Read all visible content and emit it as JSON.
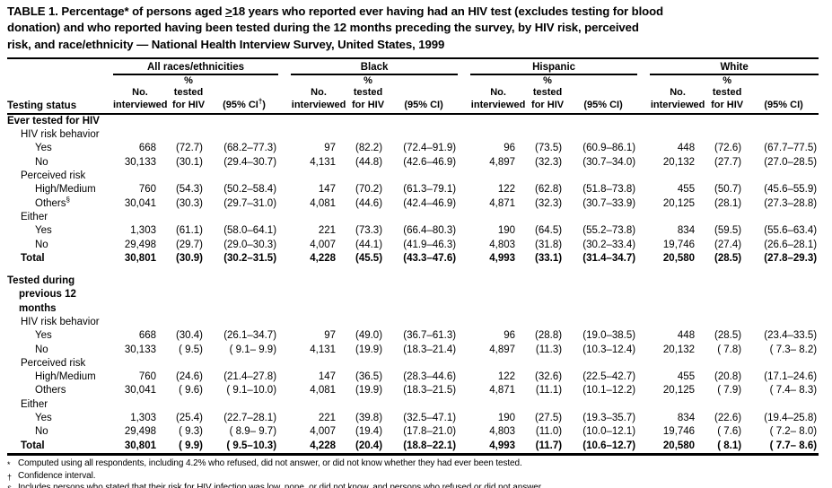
{
  "title": {
    "line1_pre": "TABLE 1. Percentage* of persons aged ",
    "line1_geq": ">",
    "line1_post": "18 years who reported ever having had an HIV test (excludes testing for blood",
    "line2": "donation) and who reported having been tested during the 12 months preceding the survey, by HIV risk, perceived",
    "line3": "risk, and race/ethnicity — National Health Interview Survey, United States, 1999"
  },
  "header": {
    "testing_status": "Testing status",
    "sub": {
      "no": "No.",
      "interviewed": "interviewed",
      "pct_sign": "%",
      "tested": "tested",
      "for_hiv": "for HIV"
    },
    "groups": [
      {
        "name": "All races/ethnicities",
        "ci_pre": "(95% CI",
        "ci_sup": "†",
        "ci_post": ")"
      },
      {
        "name": "Black",
        "ci_pre": "(95% CI)",
        "ci_sup": "",
        "ci_post": ""
      },
      {
        "name": "Hispanic",
        "ci_pre": "(95% CI)",
        "ci_sup": "",
        "ci_post": ""
      },
      {
        "name": "White",
        "ci_pre": "(95% CI)",
        "ci_sup": "",
        "ci_post": ""
      }
    ]
  },
  "rows": [
    {
      "label": "Ever tested for HIV",
      "indent": 0,
      "bold": true,
      "cells": []
    },
    {
      "label": "HIV risk behavior",
      "indent": 1,
      "bold": false,
      "cells": []
    },
    {
      "label": "Yes",
      "indent": 2,
      "bold": false,
      "cells": [
        "668",
        "(72.7)",
        "(68.2–77.3)",
        "97",
        "(82.2)",
        "(72.4–91.9)",
        "96",
        "(73.5)",
        "(60.9–86.1)",
        "448",
        "(72.6)",
        "(67.7–77.5)"
      ]
    },
    {
      "label": "No",
      "indent": 2,
      "bold": false,
      "cells": [
        "30,133",
        "(30.1)",
        "(29.4–30.7)",
        "4,131",
        "(44.8)",
        "(42.6–46.9)",
        "4,897",
        "(32.3)",
        "(30.7–34.0)",
        "20,132",
        "(27.7)",
        "(27.0–28.5)"
      ]
    },
    {
      "label": "Perceived risk",
      "indent": 1,
      "bold": false,
      "cells": []
    },
    {
      "label": "High/Medium",
      "indent": 2,
      "bold": false,
      "cells": [
        "760",
        "(54.3)",
        "(50.2–58.4)",
        "147",
        "(70.2)",
        "(61.3–79.1)",
        "122",
        "(62.8)",
        "(51.8–73.8)",
        "455",
        "(50.7)",
        "(45.6–55.9)"
      ]
    },
    {
      "label": "Others",
      "sup": "§",
      "indent": 2,
      "bold": false,
      "cells": [
        "30,041",
        "(30.3)",
        "(29.7–31.0)",
        "4,081",
        "(44.6)",
        "(42.4–46.9)",
        "4,871",
        "(32.3)",
        "(30.7–33.9)",
        "20,125",
        "(28.1)",
        "(27.3–28.8)"
      ]
    },
    {
      "label": "Either",
      "indent": 1,
      "bold": false,
      "cells": []
    },
    {
      "label": "Yes",
      "indent": 2,
      "bold": false,
      "cells": [
        "1,303",
        "(61.1)",
        "(58.0–64.1)",
        "221",
        "(73.3)",
        "(66.4–80.3)",
        "190",
        "(64.5)",
        "(55.2–73.8)",
        "834",
        "(59.5)",
        "(55.6–63.4)"
      ]
    },
    {
      "label": "No",
      "indent": 2,
      "bold": false,
      "cells": [
        "29,498",
        "(29.7)",
        "(29.0–30.3)",
        "4,007",
        "(44.1)",
        "(41.9–46.3)",
        "4,803",
        "(31.8)",
        "(30.2–33.4)",
        "19,746",
        "(27.4)",
        "(26.6–28.1)"
      ]
    },
    {
      "label": "Total",
      "indent": 1,
      "bold": true,
      "cells": [
        "30,801",
        "(30.9)",
        "(30.2–31.5)",
        "4,228",
        "(45.5)",
        "(43.3–47.6)",
        "4,993",
        "(33.1)",
        "(31.4–34.7)",
        "20,580",
        "(28.5)",
        "(27.8–29.3)"
      ]
    },
    {
      "label": "Tested during",
      "label2": "previous 12 months",
      "indent": 0,
      "bold": true,
      "gap": true,
      "cells": []
    },
    {
      "label": "HIV risk behavior",
      "indent": 1,
      "bold": false,
      "cells": []
    },
    {
      "label": "Yes",
      "indent": 2,
      "bold": false,
      "cells": [
        "668",
        "(30.4)",
        "(26.1–34.7)",
        "97",
        "(49.0)",
        "(36.7–61.3)",
        "96",
        "(28.8)",
        "(19.0–38.5)",
        "448",
        "(28.5)",
        "(23.4–33.5)"
      ]
    },
    {
      "label": "No",
      "indent": 2,
      "bold": false,
      "cells": [
        "30,133",
        "( 9.5)",
        "( 9.1– 9.9)",
        "4,131",
        "(19.9)",
        "(18.3–21.4)",
        "4,897",
        "(11.3)",
        "(10.3–12.4)",
        "20,132",
        "( 7.8)",
        "( 7.3– 8.2)"
      ]
    },
    {
      "label": "Perceived risk",
      "indent": 1,
      "bold": false,
      "cells": []
    },
    {
      "label": "High/Medium",
      "indent": 2,
      "bold": false,
      "cells": [
        "760",
        "(24.6)",
        "(21.4–27.8)",
        "147",
        "(36.5)",
        "(28.3–44.6)",
        "122",
        "(32.6)",
        "(22.5–42.7)",
        "455",
        "(20.8)",
        "(17.1–24.6)"
      ]
    },
    {
      "label": "Others",
      "indent": 2,
      "bold": false,
      "cells": [
        "30,041",
        "( 9.6)",
        "( 9.1–10.0)",
        "4,081",
        "(19.9)",
        "(18.3–21.5)",
        "4,871",
        "(11.1)",
        "(10.1–12.2)",
        "20,125",
        "( 7.9)",
        "( 7.4– 8.3)"
      ]
    },
    {
      "label": "Either",
      "indent": 1,
      "bold": false,
      "cells": []
    },
    {
      "label": "Yes",
      "indent": 2,
      "bold": false,
      "cells": [
        "1,303",
        "(25.4)",
        "(22.7–28.1)",
        "221",
        "(39.8)",
        "(32.5–47.1)",
        "190",
        "(27.5)",
        "(19.3–35.7)",
        "834",
        "(22.6)",
        "(19.4–25.8)"
      ]
    },
    {
      "label": "No",
      "indent": 2,
      "bold": false,
      "cells": [
        "29,498",
        "( 9.3)",
        "( 8.9– 9.7)",
        "4,007",
        "(19.4)",
        "(17.8–21.0)",
        "4,803",
        "(11.0)",
        "(10.0–12.1)",
        "19,746",
        "( 7.6)",
        "( 7.2– 8.0)"
      ]
    },
    {
      "label": "Total",
      "indent": 1,
      "bold": true,
      "cells": [
        "30,801",
        "( 9.9)",
        "( 9.5–10.3)",
        "4,228",
        "(20.4)",
        "(18.8–22.1)",
        "4,993",
        "(11.7)",
        "(10.6–12.7)",
        "20,580",
        "( 8.1)",
        "( 7.7– 8.6)"
      ]
    }
  ],
  "footnotes": [
    {
      "symbol": "*",
      "text": "Computed using all respondents, including 4.2% who refused, did not answer, or did not know whether they had ever been tested."
    },
    {
      "symbol": "†",
      "text": "Confidence interval."
    },
    {
      "symbol": "§",
      "text": "Includes persons who stated that their risk for HIV infection was low, none, or did not know, and persons who refused or did not answer."
    }
  ]
}
